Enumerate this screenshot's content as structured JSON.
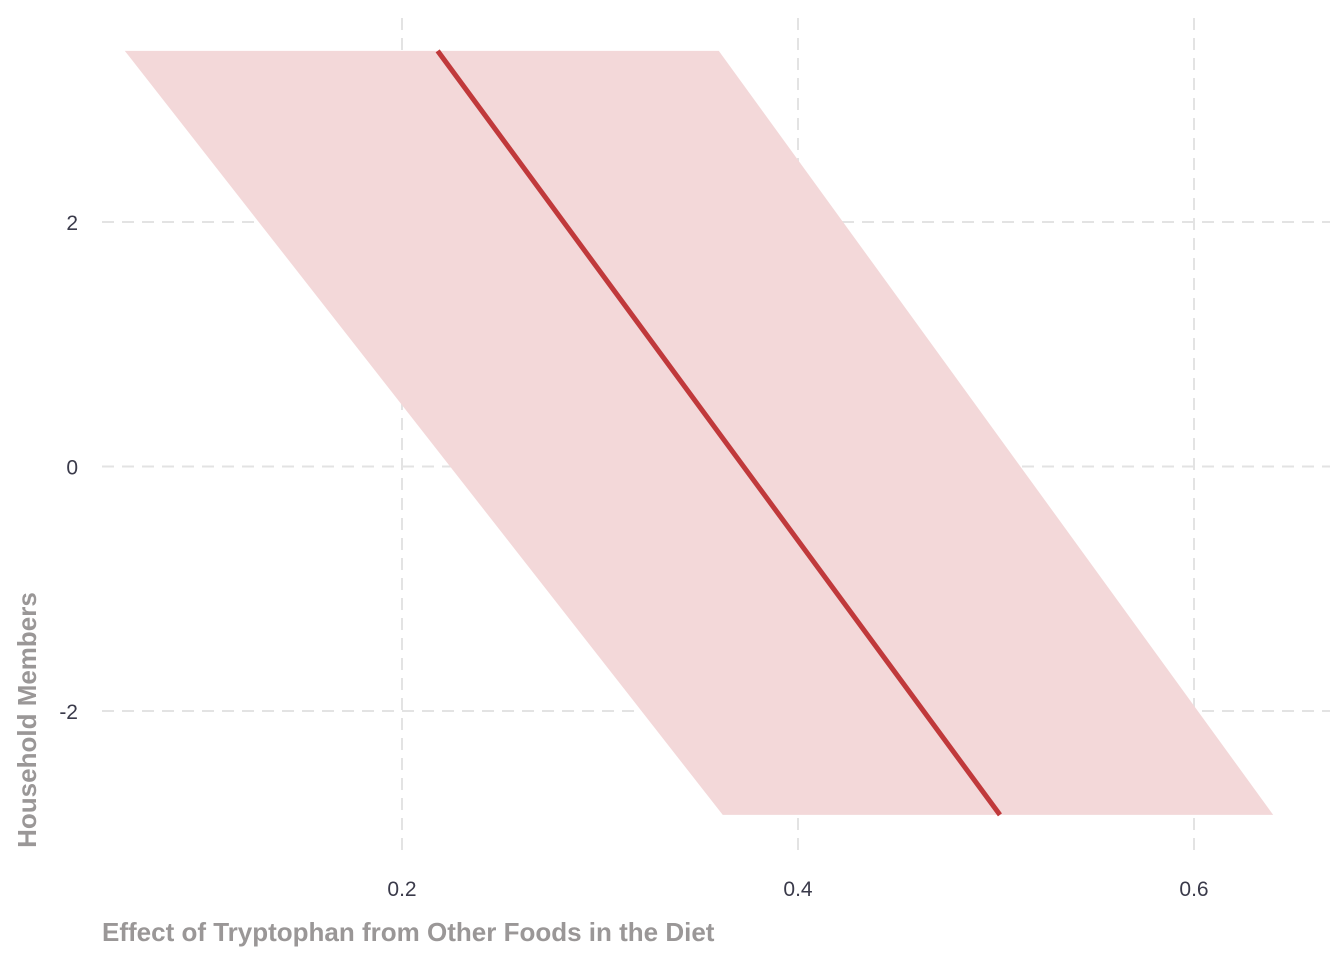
{
  "chart_data": {
    "type": "line",
    "title": "",
    "xlabel": "Effect of Tryptophan from Other Foods in the Diet",
    "ylabel": "Household Members",
    "xlim": [
      0.04,
      0.67
    ],
    "ylim": [
      -3.3,
      3.8
    ],
    "x_ticks": [
      0.2,
      0.4,
      0.6
    ],
    "x_tick_labels": [
      "0.2",
      "0.4",
      "0.6"
    ],
    "y_ticks": [
      -2,
      0,
      2
    ],
    "y_tick_labels": [
      "-2",
      "0",
      "2"
    ],
    "grid": true,
    "legend": "none",
    "colors": {
      "line": "#c0393b",
      "band": "#f3d8d9",
      "grid": "#e3e3e3"
    },
    "series": [
      {
        "points": [
          [
            0.218,
            3.4
          ],
          [
            0.502,
            -2.85
          ]
        ],
        "band_lower": [
          [
            0.06,
            3.4
          ],
          [
            0.362,
            -2.85
          ]
        ],
        "band_upper": [
          [
            0.36,
            3.4
          ],
          [
            0.64,
            -2.85
          ]
        ]
      }
    ]
  }
}
